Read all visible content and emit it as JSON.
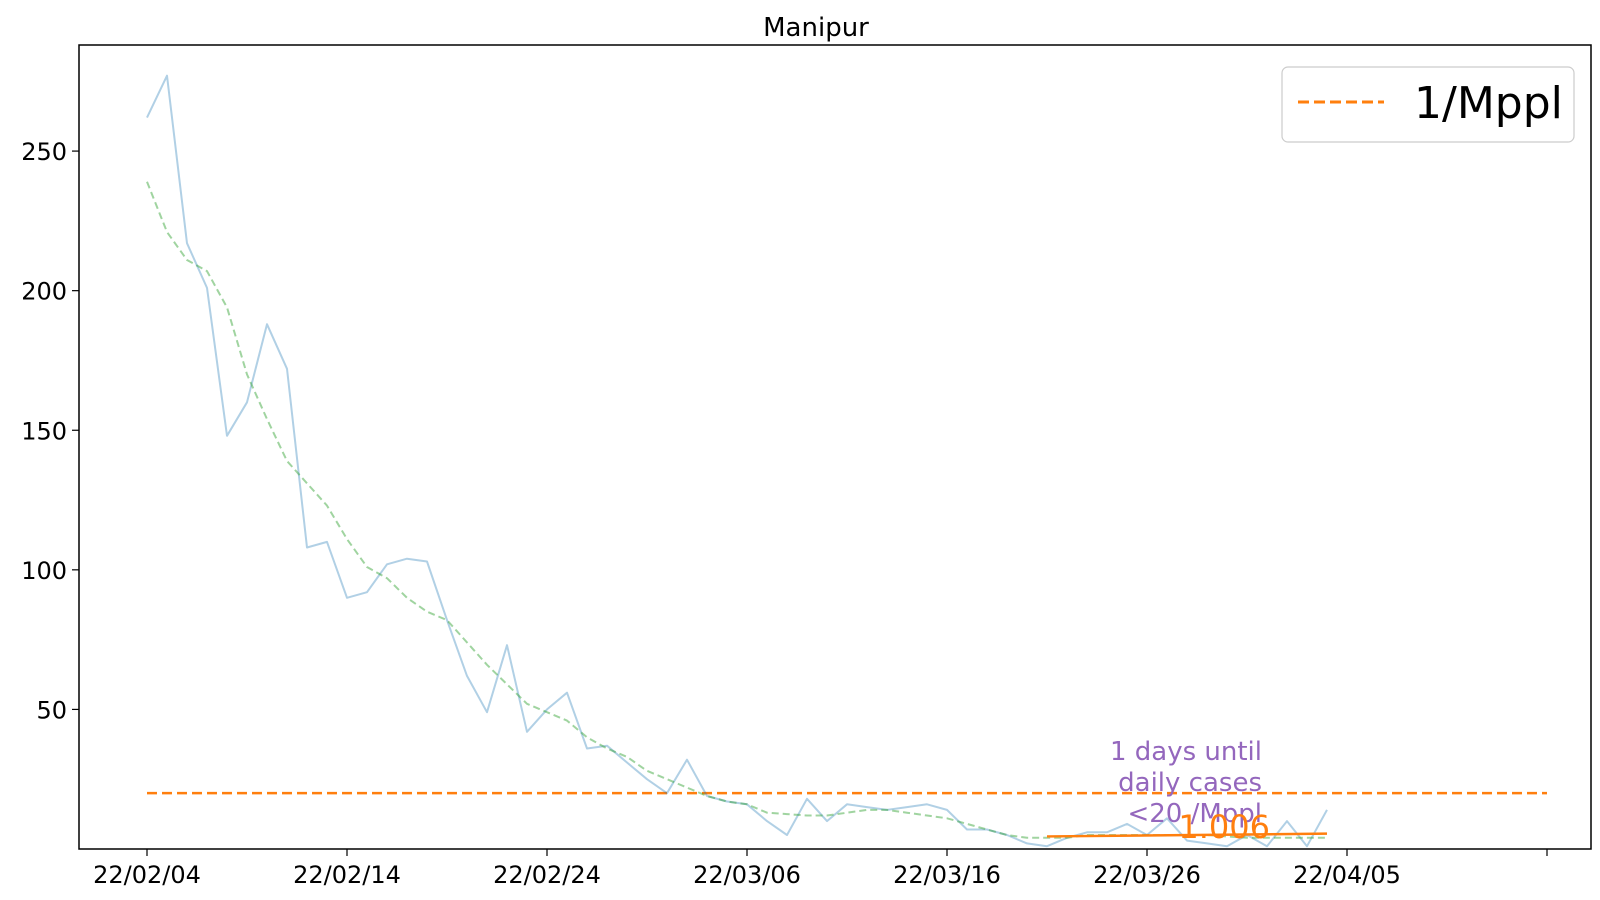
{
  "chart_data": {
    "type": "line",
    "title": "Manipur",
    "xlabel": "",
    "ylabel": "",
    "x_start": "2022-02-04",
    "x_tick_labels": [
      "22/02/04",
      "22/02/14",
      "22/02/24",
      "22/03/06",
      "22/03/16",
      "22/03/26",
      "22/04/05"
    ],
    "y_ticks": [
      50,
      100,
      150,
      200,
      250
    ],
    "ylim": [
      0,
      288
    ],
    "grid": false,
    "legend_position": "top-right",
    "legend": [
      {
        "label": "1/Mppl",
        "color": "#ff7f0e",
        "style": "dashed"
      }
    ],
    "series": [
      {
        "kind": "daily-cases",
        "color": "#1f77b4",
        "opacity": 0.35,
        "style": "solid",
        "values": [
          262,
          277,
          217,
          201,
          148,
          160,
          188,
          172,
          108,
          110,
          90,
          92,
          102,
          104,
          103,
          82,
          62,
          49,
          73,
          42,
          50,
          56,
          36,
          37,
          31,
          25,
          20,
          32,
          19,
          17,
          16,
          10,
          5,
          18,
          10,
          16,
          15,
          14,
          15,
          16,
          14,
          7,
          7,
          5,
          2,
          1,
          4,
          6,
          6,
          9,
          5,
          11,
          3,
          2,
          1,
          5,
          1,
          10,
          1,
          14
        ]
      },
      {
        "kind": "smoothed",
        "color": "#2ca02c",
        "opacity": 0.45,
        "style": "dashed",
        "values": [
          239,
          221,
          211,
          207,
          194,
          170,
          154,
          139,
          131,
          123,
          111,
          101,
          97,
          90,
          85,
          82,
          74,
          66,
          59,
          52,
          49,
          46,
          40,
          36,
          33,
          28,
          25,
          22,
          19,
          17,
          16,
          13,
          12.5,
          12,
          12,
          13,
          14,
          14,
          13,
          12,
          11,
          9,
          7,
          5,
          4,
          4,
          4,
          5,
          5,
          5,
          5,
          5,
          5,
          5,
          4.5,
          4,
          4,
          4,
          4,
          4
        ]
      }
    ],
    "threshold": {
      "label": "1/Mppl",
      "value": 20,
      "x_from_index": 0,
      "x_to_index": 70,
      "color": "#ff7f0e"
    },
    "trend_line": {
      "x_from_index": 45,
      "x_to_index": 59,
      "y_from": 4.5,
      "y_to": 5.5,
      "color": "#ff7f0e"
    },
    "annotations": [
      {
        "lines": [
          "1 days until",
          "daily cases",
          "<20 /Mppl"
        ],
        "color": "#9467bd"
      },
      {
        "text": "1.006",
        "color": "#ff7f0e"
      }
    ],
    "x_axis_total_ticks": 8
  }
}
